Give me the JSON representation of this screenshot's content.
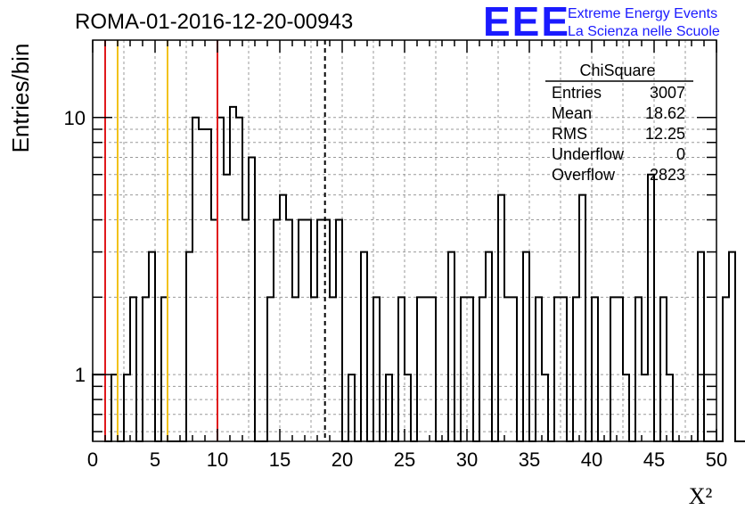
{
  "title": "ROMA-01-2016-12-20-00943",
  "logo": {
    "text": "EEE",
    "line1": "Extreme Energy Events",
    "line2": "La Scienza nelle Scuole",
    "color": "#1a1aff"
  },
  "stats_box": {
    "title": "ChiSquare",
    "rows": [
      {
        "label": "Entries",
        "value": "3007"
      },
      {
        "label": "Mean",
        "value": "18.62"
      },
      {
        "label": "RMS",
        "value": "12.25"
      },
      {
        "label": "Underflow",
        "value": "0"
      },
      {
        "label": "Overflow",
        "value": "2823"
      }
    ]
  },
  "chart_data": {
    "type": "bar",
    "histogram": true,
    "title": "ROMA-01-2016-12-20-00943",
    "xlabel": "X²",
    "ylabel": "Entries/bin",
    "xlim": [
      0,
      50
    ],
    "ylim": [
      0.55,
      20
    ],
    "log_y": true,
    "grid": true,
    "bin_width": 0.5,
    "bin_edges_start": 0,
    "values": [
      1,
      1,
      0,
      1,
      0,
      1,
      2,
      0,
      2,
      3,
      0,
      2,
      0,
      0,
      0,
      3,
      10,
      9,
      9,
      4,
      10,
      6,
      11,
      10,
      4,
      7,
      0,
      0,
      2,
      4,
      5,
      4,
      2,
      4,
      4,
      2,
      4,
      4,
      2,
      4,
      0,
      1,
      0,
      3,
      0,
      2,
      0,
      1,
      0,
      2,
      1,
      0,
      2,
      2,
      2,
      0,
      0,
      3,
      0,
      2,
      2,
      0,
      2,
      3,
      0,
      5,
      2,
      2,
      0,
      3,
      0,
      2,
      1,
      0,
      2,
      2,
      0,
      2,
      5,
      0,
      2,
      0,
      0,
      2,
      2,
      1,
      0,
      2,
      1,
      6,
      0,
      2,
      1,
      0,
      0,
      0,
      0,
      3,
      0,
      0,
      0,
      2,
      3,
      0,
      0,
      0,
      0
    ],
    "x_ticks": [
      0,
      5,
      10,
      15,
      20,
      25,
      30,
      35,
      40,
      45,
      50
    ],
    "y_ticks": [
      1,
      10
    ],
    "vertical_lines": [
      {
        "x": 1,
        "color": "#e0191c",
        "style": "solid"
      },
      {
        "x": 2,
        "color": "#f2c21a",
        "style": "solid"
      },
      {
        "x": 6,
        "color": "#f2c21a",
        "style": "solid"
      },
      {
        "x": 10,
        "color": "#e0191c",
        "style": "solid"
      },
      {
        "x": 18.62,
        "color": "#000000",
        "style": "dashed"
      }
    ]
  }
}
